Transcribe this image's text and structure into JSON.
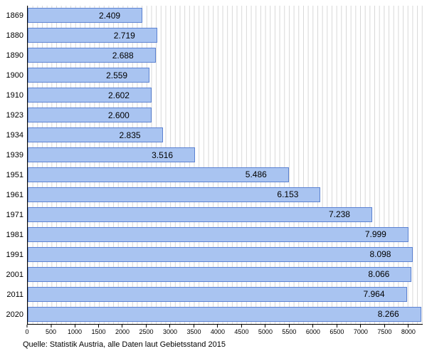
{
  "chart_data": {
    "type": "bar",
    "orientation": "horizontal",
    "title": "",
    "xlabel": "",
    "ylabel": "",
    "categories": [
      "1869",
      "1880",
      "1890",
      "1900",
      "1910",
      "1923",
      "1934",
      "1939",
      "1951",
      "1961",
      "1971",
      "1981",
      "1991",
      "2001",
      "2011",
      "2020"
    ],
    "values": [
      2409,
      2719,
      2688,
      2559,
      2602,
      2600,
      2835,
      3516,
      5486,
      6153,
      7238,
      7999,
      8098,
      8066,
      7964,
      8266
    ],
    "value_labels": [
      "2.409",
      "2.719",
      "2.688",
      "2.559",
      "2.602",
      "2.600",
      "2.835",
      "3.516",
      "5.486",
      "6.153",
      "7.238",
      "7.999",
      "8.098",
      "8.066",
      "7.964",
      "8.266"
    ],
    "x_ticks": [
      "0",
      "500",
      "1000",
      "1500",
      "2000",
      "2500",
      "3000",
      "3500",
      "4000",
      "4500",
      "5000",
      "5500",
      "6000",
      "6500",
      "7000",
      "7500",
      "8000"
    ],
    "x_tick_values": [
      0,
      500,
      1000,
      1500,
      2000,
      2500,
      3000,
      3500,
      4000,
      4500,
      5000,
      5500,
      6000,
      6500,
      7000,
      7500,
      8000
    ],
    "axis_max": 8300,
    "grid_step": 100,
    "grid": true,
    "legend_position": "none",
    "source": "Quelle: Statistik Austria, alle Daten laut Gebietsstand 2015",
    "colors": {
      "bar_fill": "#a9c4f1",
      "bar_border": "#5c82d1",
      "grid": "#d6d6d6",
      "axis": "#000000",
      "text": "#000000"
    }
  }
}
